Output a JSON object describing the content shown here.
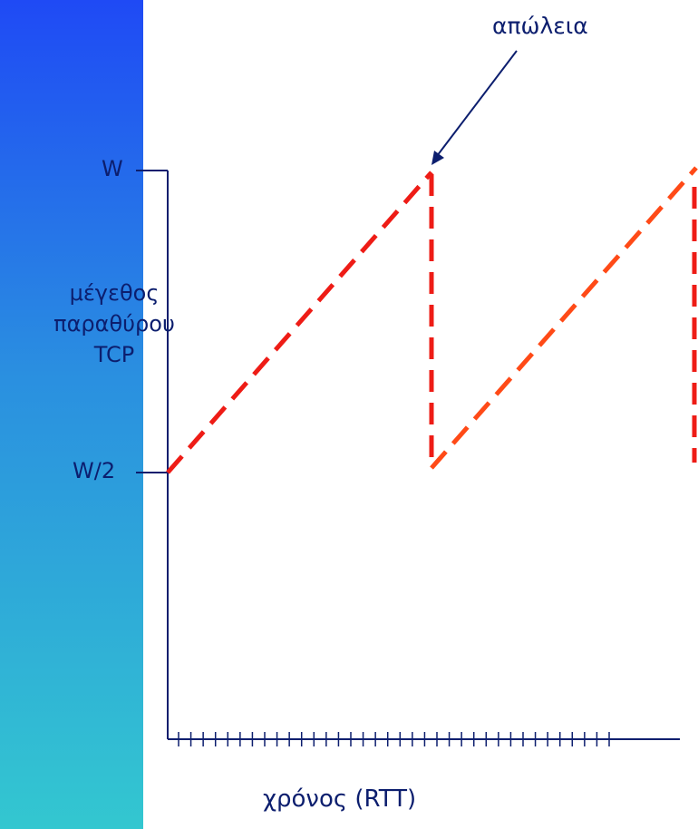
{
  "labels": {
    "loss": "απώλεια",
    "w_max": "W",
    "w_half": "W/2",
    "y_axis": [
      "μέγεθος",
      "παραθύρου",
      "TCP"
    ],
    "x_axis": "χρόνος (RTT)"
  },
  "colors": {
    "band_top": "#1f4af5",
    "band_bottom": "#33c7d0",
    "axis": "#0c1e6e",
    "sawtooth_first": "#ee1c16",
    "sawtooth_second": "#ff4a17",
    "arrow": "#0c1e6e"
  },
  "tick_count": 36
}
